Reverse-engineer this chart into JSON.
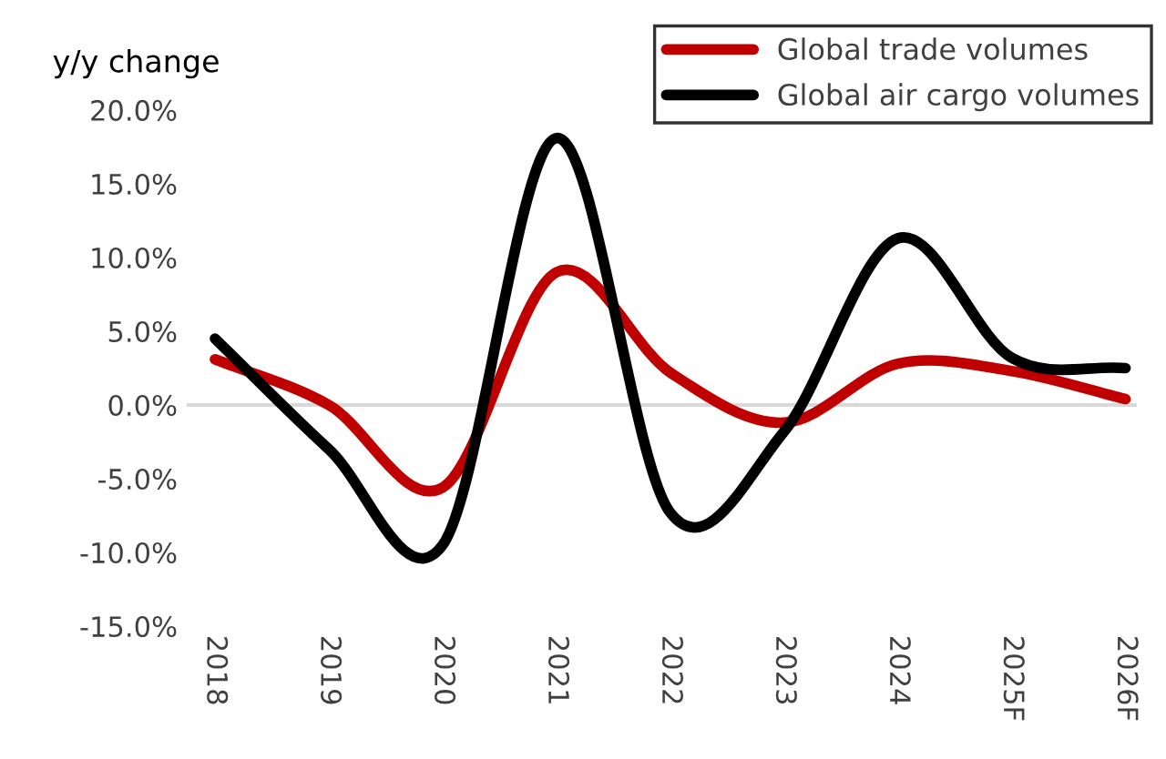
{
  "chart_data": {
    "type": "line",
    "ylabel": "y/y change",
    "categories": [
      "2018",
      "2019",
      "2020",
      "2021",
      "2022",
      "2023",
      "2024",
      "2025F",
      "2026F"
    ],
    "series": [
      {
        "name": "Global trade volumes",
        "color": "#c00000",
        "values": [
          3.1,
          0.0,
          -5.6,
          9.0,
          2.2,
          -1.2,
          2.8,
          2.3,
          0.4
        ]
      },
      {
        "name": "Global air cargo volumes",
        "color": "#000000",
        "values": [
          4.5,
          -3.0,
          -9.5,
          18.1,
          -7.3,
          -1.8,
          11.3,
          3.2,
          2.5
        ]
      }
    ],
    "ylim": [
      -15,
      20
    ],
    "yticks": [
      {
        "value": -15,
        "label": "-15.0%"
      },
      {
        "value": -10,
        "label": "-10.0%"
      },
      {
        "value": -5,
        "label": "-5.0%"
      },
      {
        "value": 0,
        "label": "0.0%"
      },
      {
        "value": 5,
        "label": "5.0%"
      },
      {
        "value": 10,
        "label": "10.0%"
      },
      {
        "value": 15,
        "label": "15.0%"
      },
      {
        "value": 20,
        "label": "20.0%"
      }
    ],
    "ref_lines": [
      {
        "axis": "y",
        "value": 0,
        "color": "#d9d9d9"
      }
    ],
    "grid": false,
    "legend": "top right",
    "marker": "none",
    "line_style": "solid"
  }
}
